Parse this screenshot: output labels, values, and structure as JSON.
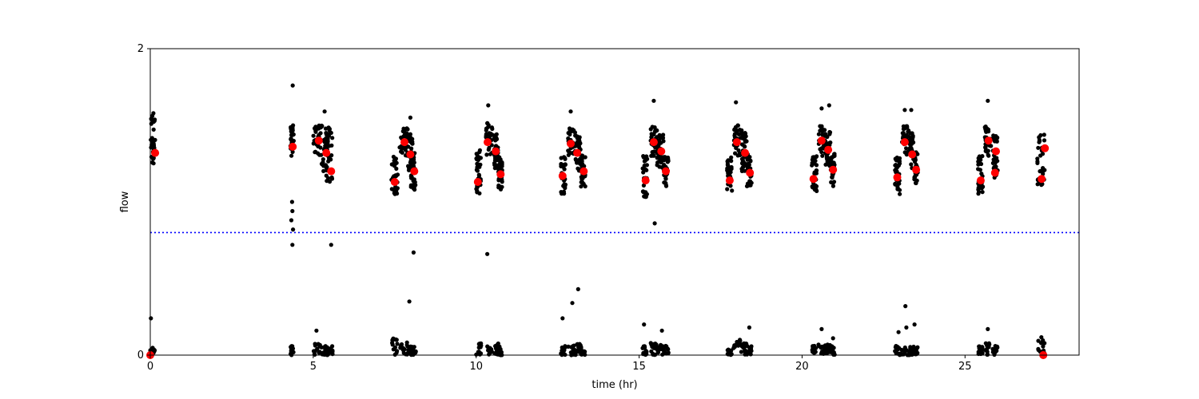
{
  "chart_data": {
    "type": "scatter",
    "title": "",
    "xlabel": "time (hr)",
    "ylabel": "flow",
    "xlim": [
      0,
      28.5
    ],
    "ylim": [
      0,
      2
    ],
    "x_ticks": [
      0,
      5,
      10,
      15,
      20,
      25
    ],
    "y_ticks": [
      0,
      2
    ],
    "grid": false,
    "legend": "none",
    "colors": {
      "raw": "#000000",
      "summary": "#ff0000",
      "threshold": "#0000ff"
    },
    "threshold": {
      "y": 0.8,
      "style": "dotted"
    },
    "clusters": [
      {
        "x": [
          0.0,
          0.15
        ],
        "high": [
          1.25,
          1.58
        ],
        "lowmax": 0.05,
        "outliers": [
          [
            0.02,
            0.24
          ]
        ]
      },
      {
        "x": [
          4.3,
          4.4
        ],
        "high": [
          1.3,
          1.5
        ],
        "lowmax": 0.06,
        "outliers": [
          [
            4.37,
            1.76
          ],
          [
            4.35,
            1.0
          ],
          [
            4.36,
            0.94
          ],
          [
            4.33,
            0.88
          ],
          [
            4.38,
            0.82
          ],
          [
            4.36,
            0.72
          ]
        ]
      },
      {
        "x": [
          5.0,
          5.25
        ],
        "high": [
          1.3,
          1.5
        ],
        "lowmax": 0.08,
        "outliers": [
          [
            5.1,
            0.16
          ]
        ]
      },
      {
        "x": [
          5.25,
          5.45
        ],
        "high": [
          1.2,
          1.5
        ],
        "lowmax": 0.06,
        "outliers": [
          [
            5.35,
            1.59
          ],
          [
            5.55,
            0.72
          ]
        ]
      },
      {
        "x": [
          5.4,
          5.6
        ],
        "high": [
          1.12,
          1.5
        ],
        "lowmax": 0.06,
        "outliers": []
      },
      {
        "x": [
          7.4,
          7.6
        ],
        "high": [
          1.05,
          1.3
        ],
        "lowmax": 0.12,
        "outliers": []
      },
      {
        "x": [
          7.65,
          7.9
        ],
        "high": [
          1.3,
          1.48
        ],
        "lowmax": 0.09,
        "outliers": []
      },
      {
        "x": [
          7.9,
          8.05
        ],
        "high": [
          1.2,
          1.45
        ],
        "lowmax": 0.06,
        "outliers": [
          [
            7.98,
            1.55
          ],
          [
            8.08,
            0.67
          ],
          [
            7.95,
            0.35
          ]
        ]
      },
      {
        "x": [
          8.0,
          8.15
        ],
        "high": [
          1.08,
          1.35
        ],
        "lowmax": 0.06,
        "outliers": []
      },
      {
        "x": [
          10.0,
          10.15
        ],
        "high": [
          1.05,
          1.35
        ],
        "lowmax": 0.08,
        "outliers": []
      },
      {
        "x": [
          10.3,
          10.5
        ],
        "high": [
          1.3,
          1.52
        ],
        "lowmax": 0.06,
        "outliers": [
          [
            10.37,
            1.63
          ],
          [
            10.34,
            0.66
          ]
        ]
      },
      {
        "x": [
          10.55,
          10.68
        ],
        "high": [
          1.22,
          1.45
        ],
        "lowmax": 0.08,
        "outliers": []
      },
      {
        "x": [
          10.68,
          10.8
        ],
        "high": [
          1.08,
          1.3
        ],
        "lowmax": 0.06,
        "outliers": []
      },
      {
        "x": [
          12.6,
          12.75
        ],
        "high": [
          1.05,
          1.3
        ],
        "lowmax": 0.06,
        "outliers": [
          [
            12.65,
            0.24
          ]
        ]
      },
      {
        "x": [
          12.8,
          13.05
        ],
        "high": [
          1.3,
          1.48
        ],
        "lowmax": 0.09,
        "outliers": [
          [
            12.9,
            1.59
          ],
          [
            12.95,
            0.34
          ]
        ]
      },
      {
        "x": [
          13.05,
          13.2
        ],
        "high": [
          1.2,
          1.45
        ],
        "lowmax": 0.08,
        "outliers": [
          [
            13.13,
            0.43
          ]
        ]
      },
      {
        "x": [
          13.2,
          13.35
        ],
        "high": [
          1.1,
          1.32
        ],
        "lowmax": 0.06,
        "outliers": []
      },
      {
        "x": [
          15.1,
          15.25
        ],
        "high": [
          1.03,
          1.3
        ],
        "lowmax": 0.06,
        "outliers": [
          [
            15.15,
            0.2
          ]
        ]
      },
      {
        "x": [
          15.35,
          15.55
        ],
        "high": [
          1.3,
          1.5
        ],
        "lowmax": 0.08,
        "outliers": [
          [
            15.45,
            1.66
          ],
          [
            15.48,
            0.86
          ]
        ]
      },
      {
        "x": [
          15.55,
          15.75
        ],
        "high": [
          1.22,
          1.45
        ],
        "lowmax": 0.07,
        "outliers": [
          [
            15.7,
            0.16
          ]
        ]
      },
      {
        "x": [
          15.75,
          15.9
        ],
        "high": [
          1.1,
          1.32
        ],
        "lowmax": 0.06,
        "outliers": []
      },
      {
        "x": [
          17.7,
          17.85
        ],
        "high": [
          1.05,
          1.3
        ],
        "lowmax": 0.06,
        "outliers": []
      },
      {
        "x": [
          17.9,
          18.15
        ],
        "high": [
          1.3,
          1.5
        ],
        "lowmax": 0.1,
        "outliers": [
          [
            17.97,
            1.65
          ]
        ]
      },
      {
        "x": [
          18.15,
          18.3
        ],
        "high": [
          1.2,
          1.45
        ],
        "lowmax": 0.08,
        "outliers": []
      },
      {
        "x": [
          18.3,
          18.45
        ],
        "high": [
          1.1,
          1.32
        ],
        "lowmax": 0.06,
        "outliers": [
          [
            18.38,
            0.18
          ]
        ]
      },
      {
        "x": [
          20.3,
          20.45
        ],
        "high": [
          1.07,
          1.3
        ],
        "lowmax": 0.06,
        "outliers": []
      },
      {
        "x": [
          20.5,
          20.7
        ],
        "high": [
          1.3,
          1.5
        ],
        "lowmax": 0.08,
        "outliers": [
          [
            20.6,
            1.61
          ],
          [
            20.6,
            0.17
          ]
        ]
      },
      {
        "x": [
          20.7,
          20.88
        ],
        "high": [
          1.22,
          1.48
        ],
        "lowmax": 0.07,
        "outliers": [
          [
            20.83,
            1.63
          ]
        ]
      },
      {
        "x": [
          20.88,
          21.0
        ],
        "high": [
          1.1,
          1.32
        ],
        "lowmax": 0.06,
        "outliers": [
          [
            20.95,
            0.11
          ]
        ]
      },
      {
        "x": [
          22.85,
          23.0
        ],
        "high": [
          1.05,
          1.3
        ],
        "lowmax": 0.06,
        "outliers": [
          [
            22.96,
            0.15
          ]
        ]
      },
      {
        "x": [
          23.05,
          23.3
        ],
        "high": [
          1.3,
          1.5
        ],
        "lowmax": 0.08,
        "outliers": [
          [
            23.15,
            1.6
          ],
          [
            23.17,
            0.32
          ]
        ]
      },
      {
        "x": [
          23.3,
          23.42
        ],
        "high": [
          1.22,
          1.45
        ],
        "lowmax": 0.06,
        "outliers": [
          [
            23.35,
            1.6
          ],
          [
            23.2,
            0.18
          ]
        ]
      },
      {
        "x": [
          23.42,
          23.55
        ],
        "high": [
          1.12,
          1.33
        ],
        "lowmax": 0.06,
        "outliers": [
          [
            23.45,
            0.2
          ]
        ]
      },
      {
        "x": [
          25.4,
          25.55
        ],
        "high": [
          1.05,
          1.3
        ],
        "lowmax": 0.06,
        "outliers": []
      },
      {
        "x": [
          25.6,
          25.8
        ],
        "high": [
          1.3,
          1.5
        ],
        "lowmax": 0.08,
        "outliers": [
          [
            25.7,
            1.66
          ],
          [
            25.7,
            0.17
          ]
        ]
      },
      {
        "x": [
          25.85,
          26.0
        ],
        "high": [
          1.15,
          1.45
        ],
        "lowmax": 0.06,
        "outliers": []
      },
      {
        "x": [
          27.2,
          27.45
        ],
        "high": [
          1.1,
          1.45
        ],
        "lowmax": 0.12,
        "outliers": []
      }
    ],
    "summary": {
      "x": [
        0.15,
        4.37,
        5.17,
        5.4,
        5.55,
        7.5,
        7.8,
        7.98,
        8.1,
        10.05,
        10.35,
        10.6,
        10.75,
        12.65,
        12.9,
        13.1,
        13.3,
        15.2,
        15.45,
        15.68,
        15.82,
        17.78,
        18.0,
        18.25,
        18.4,
        20.35,
        20.6,
        20.8,
        20.95,
        22.92,
        23.15,
        23.38,
        23.5,
        25.48,
        25.72,
        25.95,
        25.92,
        27.35,
        27.45,
        0.0,
        27.4
      ],
      "y": [
        1.32,
        1.36,
        1.4,
        1.32,
        1.2,
        1.13,
        1.39,
        1.31,
        1.2,
        1.13,
        1.39,
        1.33,
        1.18,
        1.17,
        1.38,
        1.32,
        1.2,
        1.14,
        1.39,
        1.33,
        1.2,
        1.14,
        1.39,
        1.32,
        1.19,
        1.15,
        1.4,
        1.34,
        1.21,
        1.16,
        1.39,
        1.31,
        1.21,
        1.14,
        1.4,
        1.33,
        1.19,
        1.15,
        1.35,
        0.0,
        0.0
      ]
    }
  }
}
